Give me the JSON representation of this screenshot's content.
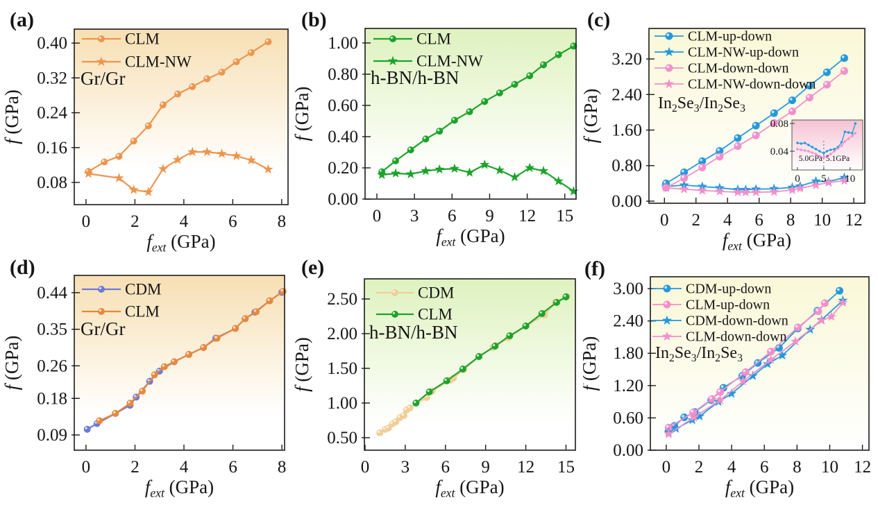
{
  "chart_data": [
    {
      "id": "a",
      "type": "line",
      "tag": "(a)",
      "material": "Gr/Gr",
      "xlabel": "*f_{ext}* (GPa)",
      "ylabel": "*f* (GPa)",
      "xlim": [
        -0.48,
        8.26
      ],
      "ylim": [
        0.029,
        0.432
      ],
      "xticks": [
        0,
        2,
        4,
        6,
        8
      ],
      "xtick_labels": [
        "0",
        "2",
        "4",
        "6",
        "8"
      ],
      "yticks": [
        0.08,
        0.16,
        0.24,
        0.32,
        0.4
      ],
      "ytick_labels": [
        "0.08",
        "0.16",
        "0.24",
        "0.32",
        "0.40"
      ],
      "grid": false,
      "legend_position": "upper-left",
      "background_gradient": [
        "#F7DFB3",
        "#FFFFFF"
      ],
      "series": [
        {
          "name": "CLM",
          "marker": "circle",
          "color": "#ED954E",
          "x": [
            0.1,
            0.75,
            1.35,
            1.95,
            2.55,
            3.15,
            3.75,
            4.35,
            4.95,
            5.55,
            6.15,
            6.75,
            7.45
          ],
          "y": [
            0.105,
            0.127,
            0.14,
            0.175,
            0.21,
            0.258,
            0.283,
            0.3,
            0.318,
            0.333,
            0.357,
            0.378,
            0.403
          ]
        },
        {
          "name": "CLM-NW",
          "marker": "star",
          "color": "#ED954E",
          "x": [
            0.1,
            1.35,
            1.95,
            2.55,
            3.15,
            3.75,
            4.35,
            4.95,
            5.55,
            6.15,
            6.75,
            7.45
          ],
          "y": [
            0.1,
            0.09,
            0.063,
            0.058,
            0.111,
            0.132,
            0.15,
            0.15,
            0.146,
            0.141,
            0.131,
            0.11
          ]
        }
      ]
    },
    {
      "id": "b",
      "type": "line",
      "tag": "(b)",
      "material": "h-BN/h-BN",
      "xlabel": "*f_{ext}* (GPa)",
      "ylabel": "*f* (GPa)",
      "xlim": [
        -0.94,
        15.9
      ],
      "ylim": [
        0,
        1.093
      ],
      "xticks": [
        0,
        3,
        6,
        9,
        12,
        15
      ],
      "xtick_labels": [
        "0",
        "3",
        "6",
        "9",
        "12",
        "15"
      ],
      "yticks": [
        0.0,
        0.2,
        0.4,
        0.6,
        0.8,
        1.0
      ],
      "ytick_labels": [
        "0.00",
        "0.20",
        "0.40",
        "0.60",
        "0.80",
        "1.00"
      ],
      "grid": false,
      "legend_position": "upper-left",
      "background_gradient": [
        "#DEF2BE",
        "#FFFFFF"
      ],
      "series": [
        {
          "name": "CLM",
          "marker": "circle",
          "color": "#1CA32B",
          "x": [
            0.4,
            1.5,
            2.7,
            3.9,
            5.0,
            6.2,
            7.4,
            8.6,
            9.8,
            11.0,
            12.2,
            13.3,
            14.5,
            15.7
          ],
          "y": [
            0.175,
            0.245,
            0.315,
            0.385,
            0.435,
            0.505,
            0.56,
            0.625,
            0.68,
            0.735,
            0.79,
            0.86,
            0.925,
            0.98
          ]
        },
        {
          "name": "CLM-NW",
          "marker": "star",
          "color": "#1CA32B",
          "x": [
            0.4,
            1.5,
            2.7,
            3.9,
            5.0,
            6.2,
            7.4,
            8.6,
            9.8,
            11.0,
            12.2,
            13.3,
            14.5,
            15.7
          ],
          "y": [
            0.155,
            0.165,
            0.16,
            0.18,
            0.19,
            0.195,
            0.17,
            0.22,
            0.185,
            0.14,
            0.2,
            0.18,
            0.115,
            0.05
          ]
        }
      ]
    },
    {
      "id": "c",
      "type": "line",
      "tag": "(c)",
      "material": "In_2Se_3/In_2Se_3",
      "xlabel": "*f_{ext}* (GPa)",
      "ylabel": "*f* (GPa)",
      "xlim": [
        -0.98,
        12.7
      ],
      "ylim": [
        -0.047,
        3.887
      ],
      "xticks": [
        0,
        2,
        4,
        6,
        8,
        10,
        12
      ],
      "xtick_labels": [
        "0",
        "2",
        "4",
        "6",
        "8",
        "10",
        "12"
      ],
      "yticks": [
        0.0,
        0.8,
        1.6,
        2.4,
        3.2
      ],
      "ytick_labels": [
        "0.00",
        "0.80",
        "1.60",
        "2.40",
        "3.20"
      ],
      "grid": false,
      "legend_position": "upper-left",
      "background_gradient": [
        "#FAF8D7",
        "#FFFFFF"
      ],
      "series": [
        {
          "name": "CLM-up-down",
          "marker": "circle",
          "color": "#2598DC",
          "x": [
            0.1,
            1.25,
            2.4,
            3.5,
            4.65,
            5.8,
            6.95,
            8.1,
            9.2,
            10.3,
            11.4
          ],
          "y": [
            0.4,
            0.65,
            0.9,
            1.13,
            1.42,
            1.7,
            1.98,
            2.27,
            2.6,
            2.9,
            3.22
          ]
        },
        {
          "name": "CLM-NW-up-down",
          "marker": "star",
          "color": "#2598DC",
          "x": [
            0.1,
            1.25,
            2.4,
            3.5,
            4.65,
            5.15,
            5.8,
            6.95,
            8.1,
            8.6,
            9.6,
            10.4,
            11.4
          ],
          "y": [
            0.33,
            0.36,
            0.33,
            0.3,
            0.26,
            0.26,
            0.27,
            0.28,
            0.31,
            0.34,
            0.45,
            0.44,
            0.53
          ]
        },
        {
          "name": "CLM-down-down",
          "marker": "circle",
          "color": "#F38FCB",
          "x": [
            0.1,
            1.25,
            2.4,
            3.5,
            4.65,
            5.8,
            6.95,
            8.1,
            9.2,
            10.3,
            11.4
          ],
          "y": [
            0.3,
            0.52,
            0.76,
            1.0,
            1.24,
            1.48,
            1.76,
            2.02,
            2.33,
            2.62,
            2.93
          ]
        },
        {
          "name": "CLM-NW-down-down",
          "marker": "star",
          "color": "#F38FCB",
          "x": [
            0.1,
            1.25,
            2.4,
            3.5,
            4.65,
            5.15,
            5.8,
            6.95,
            8.1,
            8.6,
            9.6,
            10.4,
            11.4
          ],
          "y": [
            0.3,
            0.27,
            0.24,
            0.22,
            0.2,
            0.2,
            0.2,
            0.21,
            0.25,
            0.29,
            0.36,
            0.42,
            0.46
          ]
        }
      ],
      "inset": {
        "xlim": [
          -1.05,
          12.4
        ],
        "ylim": [
          0.013,
          0.085
        ],
        "xticks": [
          0,
          5,
          10
        ],
        "xtick_labels": [
          "0",
          "5",
          "10"
        ],
        "yticks": [
          0.04,
          0.08
        ],
        "ytick_labels": [
          "0.04",
          "0.08"
        ],
        "background_gradient": [
          "#F5C3D3",
          "#FFFFFF"
        ],
        "series": [
          {
            "name": "up-down",
            "marker": "dot",
            "color": "#2598DC",
            "x": [
              0,
              0.7,
              1.4,
              2.1,
              2.8,
              3.5,
              4.2,
              5.0,
              5.6,
              6.3,
              7.0,
              7.7,
              8.4,
              9.0,
              9.7,
              10.4,
              11.0
            ],
            "y": [
              0.052,
              0.051,
              0.052,
              0.049,
              0.046,
              0.043,
              0.04,
              0.037,
              0.04,
              0.042,
              0.043,
              0.046,
              0.053,
              0.068,
              0.067,
              0.066,
              0.08
            ]
          },
          {
            "name": "down-down",
            "marker": "dot",
            "color": "#F38FCB",
            "x": [
              0,
              0.7,
              1.4,
              2.1,
              2.8,
              3.5,
              4.2,
              5.0,
              5.6,
              6.3,
              7.0,
              7.7,
              8.4,
              9.0,
              9.7,
              10.4,
              11.0
            ],
            "y": [
              0.043,
              0.042,
              0.041,
              0.04,
              0.038,
              0.036,
              0.033,
              0.031,
              0.033,
              0.036,
              0.04,
              0.044,
              0.048,
              0.054,
              0.058,
              0.062,
              0.066
            ]
          }
        ],
        "vline": {
          "x": 5,
          "y1": 0.013,
          "y2": 0.0575,
          "style": "dashed",
          "color": "#666666"
        },
        "annotations": [
          {
            "text": "5.0GPa",
            "color": "#F38FCB",
            "x": 4.75,
            "y": 0.026,
            "anchor": "end"
          },
          {
            "text": "5.1GPa",
            "color": "#2598DC",
            "x": 5.4,
            "y": 0.026,
            "anchor": "start"
          }
        ]
      }
    },
    {
      "id": "d",
      "type": "line",
      "tag": "(d)",
      "material": "Gr/Gr",
      "xlabel": "*f_{ext}* (GPa)",
      "ylabel": "*f* (GPa)",
      "xlim": [
        -0.48,
        8.11
      ],
      "ylim": [
        0.0525,
        0.4825
      ],
      "xticks": [
        0,
        2,
        4,
        6,
        8
      ],
      "xtick_labels": [
        "0",
        "2",
        "4",
        "6",
        "8"
      ],
      "yticks": [
        0.09,
        0.18,
        0.26,
        0.35,
        0.44
      ],
      "ytick_labels": [
        "0.09",
        "0.18",
        "0.26",
        "0.35",
        "0.44"
      ],
      "grid": false,
      "legend_position": "upper-left",
      "background_gradient": [
        "#F7DFB3",
        "#FFFFFF"
      ],
      "series": [
        {
          "name": "CDM",
          "marker": "circle",
          "color": "#6C79DC",
          "x": [
            0.05,
            0.45,
            1.2,
            1.8,
            2.05,
            2.6,
            3.0,
            3.6,
            4.2,
            4.8,
            5.3,
            6.1,
            6.5,
            6.9,
            7.5,
            8.0
          ],
          "y": [
            0.104,
            0.118,
            0.143,
            0.163,
            0.183,
            0.222,
            0.247,
            0.27,
            0.288,
            0.305,
            0.328,
            0.352,
            0.376,
            0.392,
            0.42,
            0.441
          ]
        },
        {
          "name": "CLM",
          "marker": "circle",
          "color": "#E8893C",
          "x": [
            0.55,
            1.2,
            1.8,
            2.3,
            2.8,
            3.2,
            3.6,
            4.2,
            4.8,
            5.35,
            6.1,
            6.5,
            6.95,
            7.5,
            8.05
          ],
          "y": [
            0.125,
            0.143,
            0.168,
            0.198,
            0.238,
            0.258,
            0.27,
            0.288,
            0.305,
            0.328,
            0.352,
            0.376,
            0.393,
            0.42,
            0.443
          ]
        }
      ]
    },
    {
      "id": "e",
      "type": "line",
      "tag": "(e)",
      "material": "h-BN/h-BN",
      "xlabel": "*f_{ext}* (GPa)",
      "ylabel": "*f* (GPa)",
      "xlim": [
        -0.05,
        15.7
      ],
      "ylim": [
        0.32,
        2.79
      ],
      "xticks": [
        0,
        3,
        6,
        9,
        12,
        15
      ],
      "xtick_labels": [
        "0",
        "3",
        "6",
        "9",
        "12",
        "15"
      ],
      "yticks": [
        0.5,
        1.0,
        1.5,
        2.0,
        2.5
      ],
      "ytick_labels": [
        "0.50",
        "1.00",
        "1.50",
        "2.00",
        "2.50"
      ],
      "grid": false,
      "legend_position": "upper-left",
      "background_gradient": [
        "#DEF2BE",
        "#FFFFFF"
      ],
      "series": [
        {
          "name": "CDM",
          "marker": "circle",
          "color": "#F2CE98",
          "x": [
            1.1,
            1.5,
            1.75,
            2.05,
            2.3,
            2.6,
            2.9,
            3.1,
            3.35,
            4.6,
            5.0,
            6.35,
            6.6,
            7.35,
            8.5,
            9.55,
            9.75,
            10.7,
            12.0,
            13.4,
            14.2,
            15.05
          ],
          "y": [
            0.57,
            0.62,
            0.64,
            0.7,
            0.73,
            0.79,
            0.82,
            0.9,
            0.93,
            1.08,
            1.17,
            1.33,
            1.36,
            1.48,
            1.67,
            1.8,
            1.83,
            1.94,
            2.11,
            2.27,
            2.45,
            2.54
          ]
        },
        {
          "name": "CLM",
          "marker": "circle",
          "color": "#1CA32B",
          "x": [
            3.8,
            4.8,
            6.1,
            7.3,
            8.5,
            9.7,
            10.8,
            12.0,
            13.2,
            14.3,
            15.0
          ],
          "y": [
            1.0,
            1.16,
            1.32,
            1.49,
            1.67,
            1.82,
            1.97,
            2.11,
            2.29,
            2.45,
            2.53
          ]
        }
      ]
    },
    {
      "id": "f",
      "type": "line",
      "tag": "(f)",
      "material": "In_2Se_3/In_2Se_3",
      "xlabel": "*f_{ext}* (GPa)",
      "ylabel": "*f* (GPa)",
      "xlim": [
        -0.97,
        12.4
      ],
      "ylim": [
        0,
        3.22
      ],
      "xticks": [
        0,
        2,
        4,
        6,
        8,
        10,
        12
      ],
      "xtick_labels": [
        "0",
        "2",
        "4",
        "6",
        "8",
        "10",
        "12"
      ],
      "yticks": [
        0.0,
        0.6,
        1.2,
        1.8,
        2.4,
        3.0
      ],
      "ytick_labels": [
        "0.00",
        "0.60",
        "1.20",
        "1.80",
        "2.40",
        "3.00"
      ],
      "grid": false,
      "legend_position": "upper-left",
      "background_gradient": [
        "#FAF8D7",
        "#FFFFFF"
      ],
      "series": [
        {
          "name": "CDM-up-down",
          "marker": "circle",
          "color": "#2598DC",
          "x": [
            0.15,
            0.5,
            1.1,
            1.75,
            2.75,
            3.5,
            4.65,
            5.6,
            6.9,
            8.05,
            9.25,
            10.6
          ],
          "y": [
            0.37,
            0.45,
            0.61,
            0.71,
            0.93,
            1.16,
            1.38,
            1.62,
            1.9,
            2.26,
            2.59,
            2.96
          ]
        },
        {
          "name": "CLM-up-down",
          "marker": "circle",
          "color": "#F38FCB",
          "x": [
            0.15,
            1.65,
            2.8,
            3.3,
            4.85,
            6.4,
            8.05,
            9.3,
            9.7
          ],
          "y": [
            0.42,
            0.7,
            0.95,
            1.08,
            1.45,
            1.83,
            2.28,
            2.58,
            2.73
          ]
        },
        {
          "name": "CDM-down-down",
          "marker": "star",
          "color": "#2598DC",
          "x": [
            0.15,
            0.6,
            1.6,
            2.05,
            3.2,
            4.0,
            5.3,
            6.2,
            7.1,
            8.8,
            9.5,
            10.8
          ],
          "y": [
            0.33,
            0.4,
            0.56,
            0.63,
            0.9,
            1.05,
            1.38,
            1.6,
            1.76,
            2.24,
            2.42,
            2.78
          ]
        },
        {
          "name": "CLM-down-down",
          "marker": "star",
          "color": "#F38FCB",
          "x": [
            0.15,
            1.7,
            3.3,
            4.7,
            6.4,
            7.9,
            9.5,
            10.1,
            10.8
          ],
          "y": [
            0.3,
            0.61,
            0.93,
            1.28,
            1.68,
            2.02,
            2.41,
            2.48,
            2.74
          ]
        }
      ]
    }
  ]
}
